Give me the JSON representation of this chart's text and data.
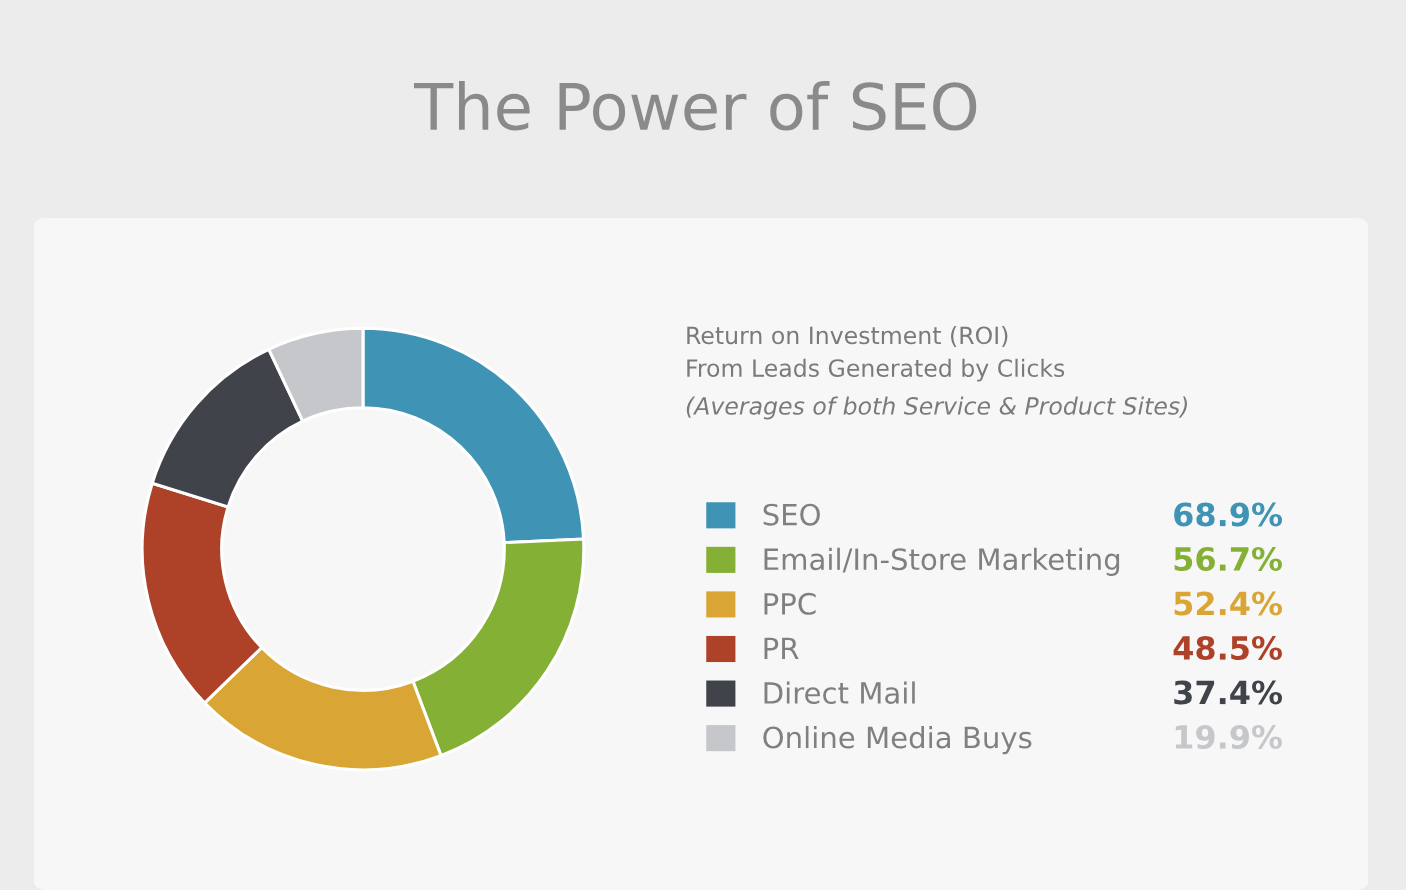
{
  "chart_data": {
    "type": "donut",
    "title": "The Power of SEO",
    "legend_title": "Return on Investment (ROI)\nFrom Leads Generated by Clicks",
    "annotations": [
      "(Averages of both Service & Product Sites)"
    ],
    "categories": [
      "SEO",
      "Email/In-Store Marketing",
      "PPC",
      "PR",
      "Direct Mail",
      "Online Media Buys"
    ],
    "values": [
      68.9,
      56.7,
      52.4,
      48.5,
      37.4,
      19.9
    ],
    "value_labels": [
      "68.9%",
      "56.7%",
      "52.4%",
      "48.5%",
      "37.4%",
      "19.9%"
    ],
    "colors": [
      "#3f93b4",
      "#84b135",
      "#d9a636",
      "#ae4228",
      "#40444a",
      "#c5c7ca"
    ],
    "legend": "right"
  }
}
